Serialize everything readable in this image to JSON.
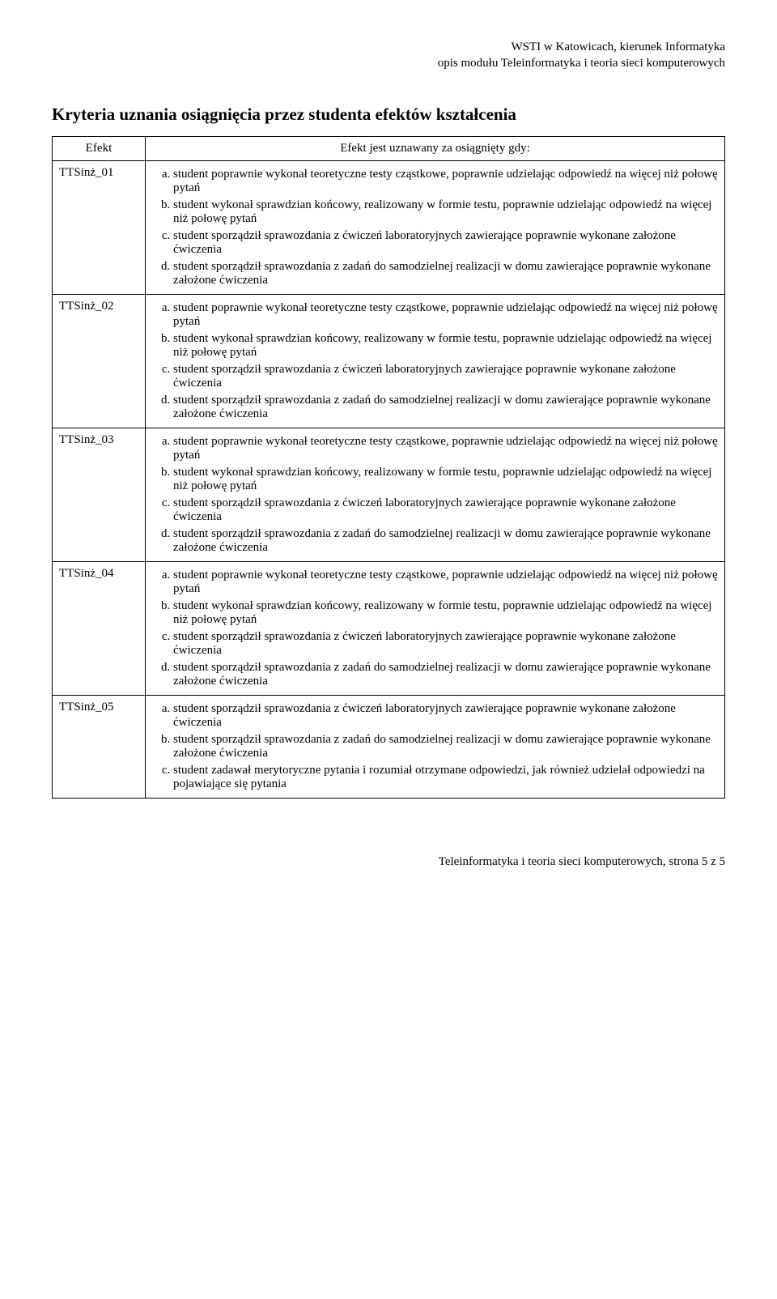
{
  "header": {
    "line1": "WSTI w Katowicach, kierunek Informatyka",
    "line2": "opis modułu Teleinformatyka i teoria sieci komputerowych"
  },
  "title": "Kryteria uznania osiągnięcia przez studenta efektów kształcenia",
  "table": {
    "col_effect_header": "Efekt",
    "col_criteria_header": "Efekt jest uznawany za osiągnięty gdy:",
    "rows": [
      {
        "effect": "TTSinż_01",
        "items": [
          "student poprawnie wykonał teoretyczne testy cząstkowe, poprawnie udzielając odpowiedź na więcej niż połowę pytań",
          "student wykonał sprawdzian końcowy, realizowany w formie testu, poprawnie udzielając odpowiedź na więcej niż połowę pytań",
          "student sporządził sprawozdania z ćwiczeń laboratoryjnych zawierające poprawnie wykonane założone ćwiczenia",
          "student sporządził sprawozdania z zadań do samodzielnej realizacji w domu zawierające poprawnie wykonane założone ćwiczenia"
        ]
      },
      {
        "effect": "TTSinż_02",
        "items": [
          "student poprawnie wykonał teoretyczne testy cząstkowe, poprawnie udzielając odpowiedź na więcej niż połowę pytań",
          "student wykonał sprawdzian końcowy, realizowany w formie testu, poprawnie udzielając odpowiedź na więcej niż połowę pytań",
          "student sporządził sprawozdania z ćwiczeń laboratoryjnych zawierające poprawnie wykonane założone ćwiczenia",
          "student sporządził sprawozdania z zadań do samodzielnej realizacji w domu zawierające poprawnie wykonane założone ćwiczenia"
        ]
      },
      {
        "effect": "TTSinż_03",
        "items": [
          "student poprawnie wykonał teoretyczne testy cząstkowe, poprawnie udzielając odpowiedź na więcej niż połowę pytań",
          "student wykonał sprawdzian końcowy, realizowany w formie testu, poprawnie udzielając odpowiedź na więcej niż połowę pytań",
          "student sporządził sprawozdania z ćwiczeń laboratoryjnych zawierające poprawnie wykonane założone ćwiczenia",
          "student sporządził sprawozdania z zadań do samodzielnej realizacji w domu zawierające poprawnie wykonane założone ćwiczenia"
        ]
      },
      {
        "effect": "TTSinż_04",
        "items": [
          "student poprawnie wykonał teoretyczne testy cząstkowe, poprawnie udzielając odpowiedź na więcej niż połowę pytań",
          "student wykonał sprawdzian końcowy, realizowany w formie testu, poprawnie udzielając odpowiedź na więcej niż połowę pytań",
          "student sporządził sprawozdania z ćwiczeń laboratoryjnych zawierające poprawnie wykonane założone ćwiczenia",
          "student sporządził sprawozdania z zadań do samodzielnej realizacji w domu zawierające poprawnie wykonane założone ćwiczenia"
        ]
      },
      {
        "effect": "TTSinż_05",
        "items": [
          "student sporządził sprawozdania z ćwiczeń laboratoryjnych zawierające poprawnie wykonane założone ćwiczenia",
          "student sporządził sprawozdania z zadań do samodzielnej realizacji w domu zawierające poprawnie wykonane założone ćwiczenia",
          "student zadawał merytoryczne pytania i rozumiał otrzymane odpowiedzi, jak również udzielał odpowiedzi na pojawiające się pytania"
        ]
      }
    ]
  },
  "footer": "Teleinformatyka i teoria sieci komputerowych, strona 5 z 5"
}
